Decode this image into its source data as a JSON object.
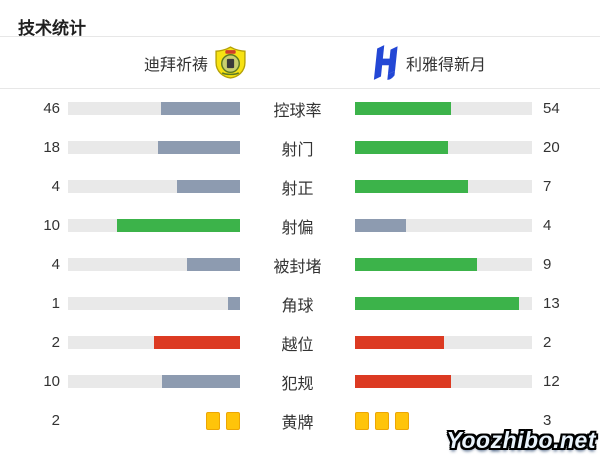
{
  "title": "技术统计",
  "teams": {
    "home": {
      "name": "迪拜祈祷",
      "crest_icon": "yellow-shield-crest"
    },
    "away": {
      "name": "利雅得新月",
      "crest_icon": "blue-hilal-h-crest"
    }
  },
  "colors": {
    "green": "#3cb34a",
    "gray": "#8d9bb0",
    "red": "#dc3a22",
    "track": "#e9e9e9",
    "card_yellow": "#ffc40a",
    "card_border": "#eda604",
    "hilal_blue": "#2347d5",
    "badge_yellow": "#f7e213"
  },
  "chart_data": {
    "type": "bar",
    "title": "技术统计",
    "categories": [
      "控球率",
      "射门",
      "射正",
      "射偏",
      "被封堵",
      "角球",
      "越位",
      "犯规",
      "黄牌"
    ],
    "series": [
      {
        "name": "迪拜祈祷",
        "values": [
          46,
          18,
          4,
          10,
          4,
          1,
          2,
          10,
          2
        ]
      },
      {
        "name": "利雅得新月",
        "values": [
          54,
          20,
          7,
          4,
          9,
          13,
          2,
          12,
          3
        ]
      }
    ]
  },
  "stats": {
    "rows": [
      {
        "label": "控球率",
        "type": "bar",
        "home": {
          "value": 46,
          "pct": 46,
          "color": "gray"
        },
        "away": {
          "value": 54,
          "pct": 54,
          "color": "green"
        }
      },
      {
        "label": "射门",
        "type": "bar",
        "home": {
          "value": 18,
          "pct": 47.4,
          "color": "gray"
        },
        "away": {
          "value": 20,
          "pct": 52.6,
          "color": "green"
        }
      },
      {
        "label": "射正",
        "type": "bar",
        "home": {
          "value": 4,
          "pct": 36.4,
          "color": "gray"
        },
        "away": {
          "value": 7,
          "pct": 63.6,
          "color": "green"
        }
      },
      {
        "label": "射偏",
        "type": "bar",
        "home": {
          "value": 10,
          "pct": 71.4,
          "color": "green"
        },
        "away": {
          "value": 4,
          "pct": 28.6,
          "color": "gray"
        }
      },
      {
        "label": "被封堵",
        "type": "bar",
        "home": {
          "value": 4,
          "pct": 30.8,
          "color": "gray"
        },
        "away": {
          "value": 9,
          "pct": 69.2,
          "color": "green"
        }
      },
      {
        "label": "角球",
        "type": "bar",
        "home": {
          "value": 1,
          "pct": 7.1,
          "color": "gray"
        },
        "away": {
          "value": 13,
          "pct": 92.9,
          "color": "green"
        }
      },
      {
        "label": "越位",
        "type": "bar",
        "home": {
          "value": 2,
          "pct": 50,
          "color": "red"
        },
        "away": {
          "value": 2,
          "pct": 50,
          "color": "red"
        }
      },
      {
        "label": "犯规",
        "type": "bar",
        "home": {
          "value": 10,
          "pct": 45.5,
          "color": "gray"
        },
        "away": {
          "value": 12,
          "pct": 54.5,
          "color": "red"
        }
      },
      {
        "label": "黄牌",
        "type": "cards",
        "home": {
          "value": 2,
          "cards": 2
        },
        "away": {
          "value": 3,
          "cards": 3
        }
      }
    ]
  },
  "watermark": "Yoozhibo.net"
}
